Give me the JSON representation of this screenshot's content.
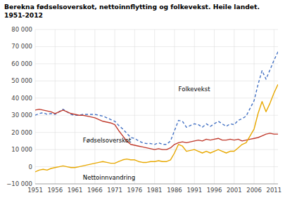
{
  "chart_data": {
    "type": "line",
    "title": "Berekna fødselsoverskot, nettoinnflytting og folkevekst. Heile landet.",
    "subtitle": "1951-2012",
    "x": [
      1951,
      1952,
      1953,
      1954,
      1955,
      1956,
      1957,
      1958,
      1959,
      1960,
      1961,
      1962,
      1963,
      1964,
      1965,
      1966,
      1967,
      1968,
      1969,
      1970,
      1971,
      1972,
      1973,
      1974,
      1975,
      1976,
      1977,
      1978,
      1979,
      1980,
      1981,
      1982,
      1983,
      1984,
      1985,
      1986,
      1987,
      1988,
      1989,
      1990,
      1991,
      1992,
      1993,
      1994,
      1995,
      1996,
      1997,
      1998,
      1999,
      2000,
      2001,
      2002,
      2003,
      2004,
      2005,
      2006,
      2007,
      2008,
      2009,
      2010,
      2011,
      2012
    ],
    "series": [
      {
        "color": "#4472c4",
        "line_style": "dashed",
        "values": [
          30000,
          31000,
          31500,
          30500,
          31000,
          30500,
          32000,
          33500,
          32000,
          30500,
          30000,
          30000,
          30500,
          30500,
          30500,
          30500,
          30000,
          29500,
          28500,
          27500,
          26500,
          24000,
          22000,
          19500,
          17000,
          16500,
          15000,
          14000,
          13500,
          13500,
          13000,
          14000,
          13000,
          13000,
          15000,
          21000,
          27000,
          26500,
          23000,
          24000,
          25000,
          24500,
          23000,
          25000,
          23500,
          25000,
          26500,
          25000,
          23500,
          25000,
          24500,
          27000,
          28000,
          29500,
          34000,
          38500,
          48000,
          56000,
          51000,
          56500,
          62000,
          67000
        ]
      },
      {
        "color": "#c0392b",
        "line_style": "solid",
        "values": [
          33000,
          33500,
          33000,
          32500,
          32000,
          31000,
          32000,
          33000,
          32000,
          31000,
          30500,
          30000,
          30000,
          29500,
          29000,
          28500,
          27500,
          26500,
          26000,
          25500,
          24500,
          21000,
          18000,
          15000,
          13000,
          12500,
          12000,
          11500,
          11000,
          10500,
          10000,
          10500,
          10000,
          10000,
          11000,
          13000,
          14000,
          14500,
          14000,
          14500,
          15000,
          15500,
          15000,
          16000,
          15500,
          16000,
          16500,
          15500,
          15500,
          16000,
          15500,
          16000,
          15000,
          15500,
          16000,
          16500,
          17000,
          18000,
          19000,
          19500,
          19000,
          19000
        ]
      },
      {
        "color": "#e8a800",
        "line_style": "solid",
        "values": [
          -3000,
          -2000,
          -1500,
          -2000,
          -1000,
          -500,
          0,
          500,
          0,
          -500,
          -500,
          0,
          500,
          1000,
          1500,
          2000,
          2500,
          3000,
          2500,
          2000,
          2000,
          3000,
          4000,
          4500,
          4000,
          4000,
          3000,
          2500,
          2500,
          3000,
          3000,
          3500,
          3000,
          3000,
          4000,
          8000,
          13000,
          12000,
          9000,
          9500,
          10000,
          9000,
          8000,
          9000,
          8000,
          9000,
          10000,
          9000,
          8000,
          9000,
          9000,
          11000,
          13000,
          14000,
          18000,
          22000,
          31000,
          38000,
          32000,
          37000,
          43000,
          48000
        ]
      }
    ],
    "annotations": [
      {
        "text": "Folkevekst",
        "x": 1987,
        "y": 44000
      },
      {
        "text": "Fødselsoverskot",
        "x": 1963,
        "y": 14000
      },
      {
        "text": "Nettoinnvandring",
        "x": 1963,
        "y": -7500
      }
    ],
    "xlim": [
      1951,
      2012
    ],
    "xticks": [
      1951,
      1956,
      1961,
      1966,
      1971,
      1976,
      1981,
      1986,
      1991,
      1996,
      2001,
      2006,
      2011
    ],
    "ylim": [
      -10000,
      80000
    ],
    "yticks": [
      {
        "value": -10000,
        "label": "−10 000"
      },
      0,
      {
        "value": 10000,
        "label": "10 000"
      },
      {
        "value": 20000,
        "label": "20 000"
      },
      {
        "value": 30000,
        "label": "30 000"
      },
      {
        "value": 40000,
        "label": "40 000"
      },
      {
        "value": 50000,
        "label": "50 000"
      },
      {
        "value": 60000,
        "label": "60 000"
      },
      {
        "value": 70000,
        "label": "70 000"
      },
      {
        "value": 80000,
        "label": "80 000"
      }
    ],
    "grid": true
  }
}
